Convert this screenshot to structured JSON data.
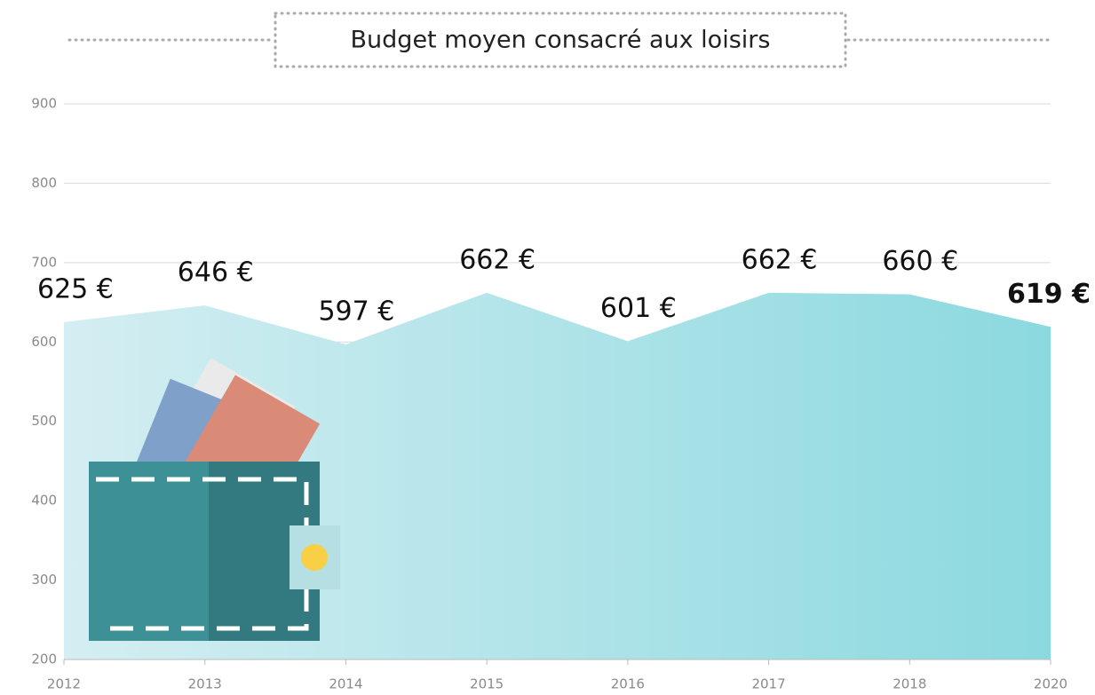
{
  "chart_data": {
    "type": "area",
    "title": "Budget moyen consacré aux loisirs",
    "categories": [
      "2012",
      "2013",
      "2014",
      "2015",
      "2016",
      "2017",
      "2018",
      "2020"
    ],
    "values": [
      625,
      646,
      597,
      662,
      601,
      662,
      660,
      619
    ],
    "value_labels": [
      "625 €",
      "646 €",
      "597 €",
      "662 €",
      "601 €",
      "662 €",
      "660 €",
      "619 €"
    ],
    "gradient": [
      "#d4eef2",
      "#8bd9df"
    ],
    "last_label_color": "#2aa3b0",
    "ylim": [
      200,
      900
    ],
    "yticks": [
      200,
      300,
      400,
      500,
      600,
      700,
      800,
      900
    ],
    "grid": true
  }
}
